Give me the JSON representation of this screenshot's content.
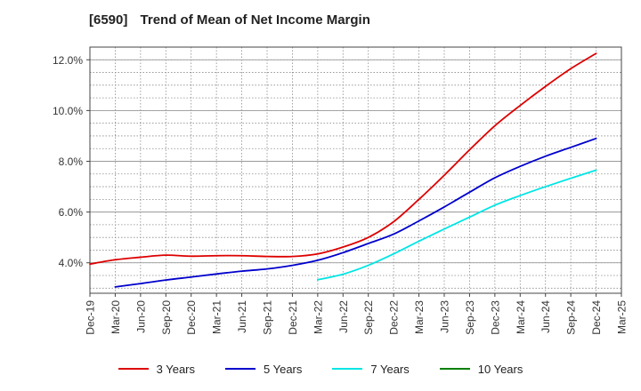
{
  "header": {
    "code": "[6590]",
    "title": "Trend of Mean of Net Income Margin"
  },
  "chart_data": {
    "type": "line",
    "title": "Trend of Mean of Net Income Margin",
    "xlabel": "",
    "ylabel": "",
    "x": [
      "Dec-19",
      "Mar-20",
      "Jun-20",
      "Sep-20",
      "Dec-20",
      "Mar-21",
      "Jun-21",
      "Sep-21",
      "Dec-21",
      "Mar-22",
      "Jun-22",
      "Sep-22",
      "Dec-22",
      "Mar-23",
      "Jun-23",
      "Sep-23",
      "Dec-23",
      "Mar-24",
      "Jun-24",
      "Sep-24",
      "Dec-24",
      "Mar-25"
    ],
    "y_ticks": [
      "4.0%",
      "6.0%",
      "8.0%",
      "10.0%",
      "12.0%"
    ],
    "y_tick_values": [
      4,
      6,
      8,
      10,
      12
    ],
    "ylim": [
      2.8,
      12.5
    ],
    "grid": true,
    "legend_position": "bottom",
    "series": [
      {
        "name": "3 Years",
        "color": "#dd0000",
        "values": [
          3.95,
          4.12,
          4.22,
          4.3,
          4.26,
          4.28,
          4.28,
          4.25,
          4.25,
          4.35,
          4.62,
          5.0,
          5.62,
          6.5,
          7.45,
          8.45,
          9.4,
          10.2,
          10.95,
          11.65,
          12.25,
          null
        ]
      },
      {
        "name": "5 Years",
        "color": "#0000cc",
        "values": [
          null,
          3.05,
          3.18,
          3.32,
          3.44,
          3.56,
          3.67,
          3.76,
          3.9,
          4.1,
          4.4,
          4.76,
          5.13,
          5.65,
          6.2,
          6.78,
          7.35,
          7.8,
          8.2,
          8.55,
          8.9,
          null
        ]
      },
      {
        "name": "7 Years",
        "color": "#00e5e5",
        "values": [
          null,
          null,
          null,
          null,
          null,
          null,
          null,
          null,
          null,
          3.33,
          3.55,
          3.9,
          4.35,
          4.85,
          5.33,
          5.8,
          6.27,
          6.65,
          7.0,
          7.33,
          7.65,
          null
        ]
      },
      {
        "name": "10 Years",
        "color": "#008000",
        "values": [
          null,
          null,
          null,
          null,
          null,
          null,
          null,
          null,
          null,
          null,
          null,
          null,
          null,
          null,
          null,
          null,
          null,
          null,
          null,
          null,
          null,
          null
        ]
      }
    ]
  }
}
